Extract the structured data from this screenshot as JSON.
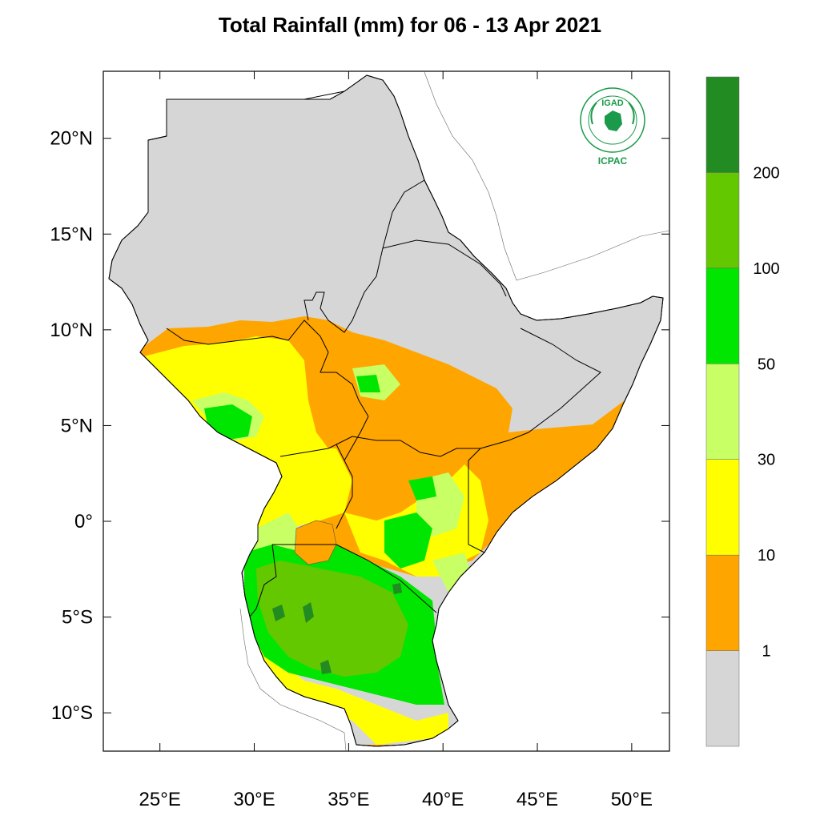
{
  "title": "Total Rainfall (mm) for 06 - 13 Apr 2021",
  "map": {
    "lon_range": [
      22,
      52
    ],
    "lat_range": [
      -12,
      23.5
    ],
    "x_ticks": [
      {
        "value": 25,
        "label": "25°E"
      },
      {
        "value": 30,
        "label": "30°E"
      },
      {
        "value": 35,
        "label": "35°E"
      },
      {
        "value": 40,
        "label": "40°E"
      },
      {
        "value": 45,
        "label": "45°E"
      },
      {
        "value": 50,
        "label": "50°E"
      }
    ],
    "y_ticks": [
      {
        "value": 20,
        "label": "20°N"
      },
      {
        "value": 15,
        "label": "15°N"
      },
      {
        "value": 10,
        "label": "10°N"
      },
      {
        "value": 5,
        "label": "5°N"
      },
      {
        "value": 0,
        "label": "0°"
      },
      {
        "value": -5,
        "label": "5°S"
      },
      {
        "value": -10,
        "label": "10°S"
      }
    ],
    "colors": {
      "lt1": "#d6d6d6",
      "c1_10": "#ffa500",
      "c10_30": "#ffff00",
      "c30_50": "#c8ff64",
      "c50_100": "#00e600",
      "c100_200": "#64c800",
      "c200_plus": "#228b22"
    }
  },
  "legend": {
    "labels": [
      "1",
      "10",
      "30",
      "50",
      "100",
      "200"
    ],
    "colors": [
      "#d6d6d6",
      "#ffa500",
      "#ffff00",
      "#c8ff64",
      "#00e600",
      "#64c800",
      "#228b22"
    ]
  },
  "logo": {
    "top_text": "IGAD",
    "bottom_text": "ICPAC",
    "color": "#1a9a4a"
  }
}
